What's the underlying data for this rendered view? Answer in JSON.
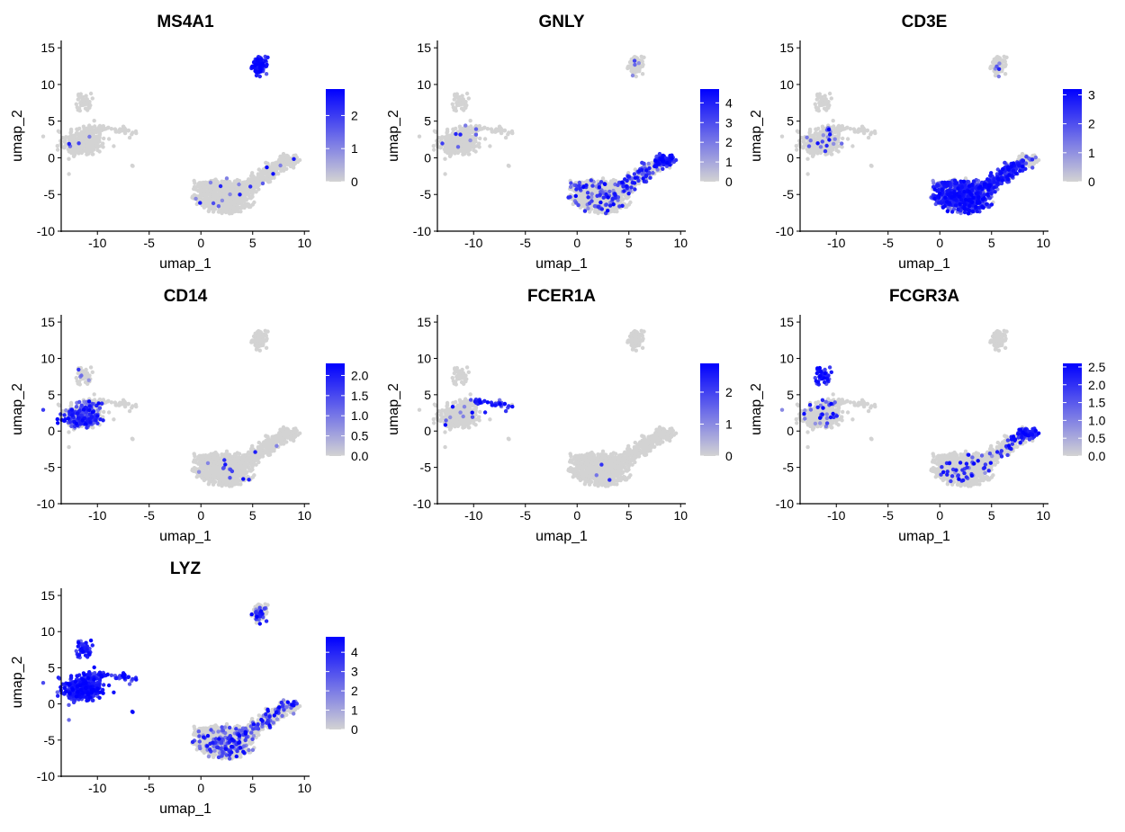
{
  "figure": {
    "background": "#ffffff"
  },
  "chart_data": [
    {
      "type": "scatter",
      "title": "MS4A1",
      "xlabel": "umap_1",
      "ylabel": "umap_2",
      "xlim": [
        -13.5,
        10.5
      ],
      "ylim": [
        -10,
        16
      ],
      "x_ticks": [
        -10,
        -5,
        0,
        5,
        10
      ],
      "x_tick_labels": [
        "-10",
        "-5",
        "0",
        "5",
        "10"
      ],
      "y_ticks": [
        -10,
        -5,
        0,
        5,
        10,
        15
      ],
      "y_tick_labels": [
        "-10",
        "-5",
        "0",
        "5",
        "10",
        "15"
      ],
      "color_low": "#d3d3d3",
      "color_high": "#0000ff",
      "legend": {
        "position": "right",
        "max": 2.8,
        "ticks": [
          0,
          1,
          2
        ],
        "tick_labels": [
          "0",
          "1",
          "2"
        ]
      },
      "expression": {
        "bcell": 0.88,
        "ttail": 0.03,
        "tcore": 0.03,
        "mono": 0.02,
        "midstrip": 0.02,
        "nk": 0.02
      }
    },
    {
      "type": "scatter",
      "title": "GNLY",
      "xlabel": "umap_1",
      "ylabel": "umap_2",
      "xlim": [
        -13.5,
        10.5
      ],
      "ylim": [
        -10,
        16
      ],
      "x_ticks": [
        -10,
        -5,
        0,
        5,
        10
      ],
      "x_tick_labels": [
        "-10",
        "-5",
        "0",
        "5",
        "10"
      ],
      "y_ticks": [
        -10,
        -5,
        0,
        5,
        10,
        15
      ],
      "y_tick_labels": [
        "-10",
        "-5",
        "0",
        "5",
        "10",
        "15"
      ],
      "color_low": "#d3d3d3",
      "color_high": "#0000ff",
      "legend": {
        "position": "right",
        "max": 4.7,
        "ticks": [
          0,
          1,
          2,
          3,
          4
        ],
        "tick_labels": [
          "0",
          "1",
          "2",
          "3",
          "4"
        ]
      },
      "expression": {
        "nk": 0.9,
        "ttail": 0.3,
        "midstrip": 0.2,
        "tcore": 0.12,
        "mono": 0.05,
        "bcell": 0.05
      }
    },
    {
      "type": "scatter",
      "title": "CD3E",
      "xlabel": "umap_1",
      "ylabel": "umap_2",
      "xlim": [
        -13.5,
        10.5
      ],
      "ylim": [
        -10,
        16
      ],
      "x_ticks": [
        -10,
        -5,
        0,
        5,
        10
      ],
      "x_tick_labels": [
        "-10",
        "-5",
        "0",
        "5",
        "10"
      ],
      "y_ticks": [
        -10,
        -5,
        0,
        5,
        10,
        15
      ],
      "y_tick_labels": [
        "-10",
        "-5",
        "0",
        "5",
        "10",
        "15"
      ],
      "color_low": "#d3d3d3",
      "color_high": "#0000ff",
      "legend": {
        "position": "right",
        "max": 3.2,
        "ticks": [
          0,
          1,
          2,
          3
        ],
        "tick_labels": [
          "0",
          "1",
          "2",
          "3"
        ]
      },
      "expression": {
        "tcore": 0.6,
        "ttail": 0.55,
        "midstrip": 0.4,
        "nk": 0.15,
        "mono": 0.08,
        "bcell": 0.08
      }
    },
    {
      "type": "scatter",
      "title": "CD14",
      "xlabel": "umap_1",
      "ylabel": "umap_2",
      "xlim": [
        -13.5,
        10.5
      ],
      "ylim": [
        -10,
        16
      ],
      "x_ticks": [
        -10,
        -5,
        0,
        5,
        10
      ],
      "x_tick_labels": [
        "-10",
        "-5",
        "0",
        "5",
        "10"
      ],
      "y_ticks": [
        -10,
        -5,
        0,
        5,
        10,
        15
      ],
      "y_tick_labels": [
        "-10",
        "-5",
        "0",
        "5",
        "10",
        "15"
      ],
      "color_low": "#d3d3d3",
      "color_high": "#0000ff",
      "legend": {
        "position": "right",
        "max": 2.3,
        "ticks": [
          0,
          0.5,
          1,
          1.5,
          2
        ],
        "tick_labels": [
          "0.0",
          "0.5",
          "1.0",
          "1.5",
          "2.0"
        ]
      },
      "expression": {
        "monolow": 0.62,
        "mono": 0.45,
        "monotop": 0.12,
        "tcore": 0.02,
        "ttail": 0.01,
        "bcell": 0.0,
        "nk": 0.0
      }
    },
    {
      "type": "scatter",
      "title": "FCER1A",
      "xlabel": "umap_1",
      "ylabel": "umap_2",
      "xlim": [
        -13.5,
        10.5
      ],
      "ylim": [
        -10,
        16
      ],
      "x_ticks": [
        -10,
        -5,
        0,
        5,
        10
      ],
      "x_tick_labels": [
        "-10",
        "-5",
        "0",
        "5",
        "10"
      ],
      "y_ticks": [
        -10,
        -5,
        0,
        5,
        10,
        15
      ],
      "y_tick_labels": [
        "-10",
        "-5",
        "0",
        "5",
        "10",
        "15"
      ],
      "color_low": "#d3d3d3",
      "color_high": "#0000ff",
      "legend": {
        "position": "right",
        "max": 2.9,
        "ticks": [
          0,
          1,
          2
        ],
        "tick_labels": [
          "0",
          "1",
          "2"
        ]
      },
      "expression": {
        "dcarm": 0.75,
        "mono": 0.03,
        "tcore": 0.005,
        "ttail": 0.0,
        "bcell": 0.0,
        "nk": 0.0
      }
    },
    {
      "type": "scatter",
      "title": "FCGR3A",
      "xlabel": "umap_1",
      "ylabel": "umap_2",
      "xlim": [
        -13.5,
        10.5
      ],
      "ylim": [
        -10,
        16
      ],
      "x_ticks": [
        -10,
        -5,
        0,
        5,
        10
      ],
      "x_tick_labels": [
        "-10",
        "-5",
        "0",
        "5",
        "10"
      ],
      "y_ticks": [
        -10,
        -5,
        0,
        5,
        10,
        15
      ],
      "y_tick_labels": [
        "-10",
        "-5",
        "0",
        "5",
        "10",
        "15"
      ],
      "color_low": "#d3d3d3",
      "color_high": "#0000ff",
      "legend": {
        "position": "right",
        "max": 2.6,
        "ticks": [
          0,
          0.5,
          1,
          1.5,
          2,
          2.5
        ],
        "tick_labels": [
          "0.0",
          "0.5",
          "1.0",
          "1.5",
          "2.0",
          "2.5"
        ]
      },
      "expression": {
        "monotop": 0.92,
        "nk": 0.75,
        "mono": 0.1,
        "ttail": 0.1,
        "tcore": 0.06,
        "bcell": 0.0
      }
    },
    {
      "type": "scatter",
      "title": "LYZ",
      "xlabel": "umap_1",
      "ylabel": "umap_2",
      "xlim": [
        -13.5,
        10.5
      ],
      "ylim": [
        -10,
        16
      ],
      "x_ticks": [
        -10,
        -5,
        0,
        5,
        10
      ],
      "x_tick_labels": [
        "-10",
        "-5",
        "0",
        "5",
        "10"
      ],
      "y_ticks": [
        -10,
        -5,
        0,
        5,
        10,
        15
      ],
      "y_tick_labels": [
        "-10",
        "-5",
        "0",
        "5",
        "10",
        "15"
      ],
      "color_low": "#d3d3d3",
      "color_high": "#0000ff",
      "legend": {
        "position": "right",
        "max": 4.8,
        "ticks": [
          0,
          1,
          2,
          3,
          4
        ],
        "tick_labels": [
          "0",
          "1",
          "2",
          "3",
          "4"
        ]
      },
      "expression": {
        "mono": 0.97,
        "monolow": 0.98,
        "monotop": 0.9,
        "dcarm": 0.8,
        "isolated": 0.6,
        "tcore": 0.2,
        "ttail": 0.2,
        "bcell": 0.3,
        "nk": 0.2
      }
    }
  ]
}
